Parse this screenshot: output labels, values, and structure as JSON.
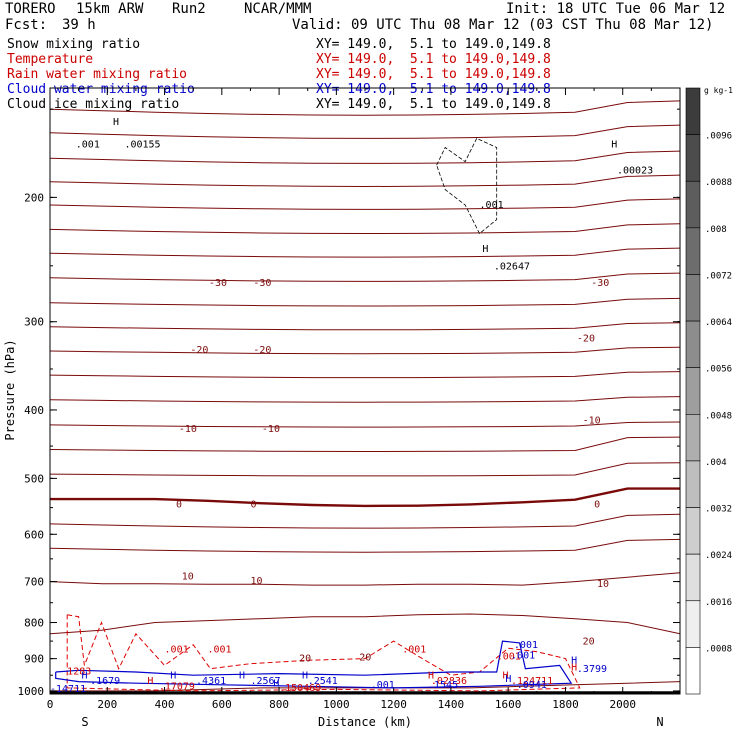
{
  "header": {
    "model": "TORERO",
    "grid": "15km ARW",
    "run": "Run2",
    "org": "NCAR/MMM",
    "init": "Init: 18 UTC Tue 06 Mar 12",
    "fcst_label": "Fcst:",
    "fcst_value": "39 h",
    "valid": "Valid: 09 UTC Thu 08 Mar 12 (03 CST Thu 08 Mar 12)"
  },
  "fields": [
    {
      "name": "Snow mixing ratio",
      "color": "#000000",
      "xy": "XY= 149.0,  5.1 to 149.0,149.8"
    },
    {
      "name": "Temperature",
      "color": "#cc0000",
      "xy": "XY= 149.0,  5.1 to 149.0,149.8"
    },
    {
      "name": "Rain water mixing ratio",
      "color": "#cc0000",
      "xy": "XY= 149.0,  5.1 to 149.0,149.8"
    },
    {
      "name": "Cloud water mixing ratio",
      "color": "#0000cc",
      "xy": "XY= 149.0,  5.1 to 149.0,149.8"
    },
    {
      "name": "Cloud ice mixing ratio",
      "color": "#000000",
      "xy": "XY= 149.0,  5.1 to 149.0,149.8"
    }
  ],
  "chart_data": {
    "type": "cross-section",
    "ylabel": "Pressure (hPa)",
    "xlabel": "Distance (km)",
    "x_ticks": [
      0,
      200,
      400,
      600,
      800,
      1000,
      1200,
      1400,
      1600,
      1800,
      2000
    ],
    "y_ticks": [
      200,
      300,
      400,
      500,
      600,
      700,
      800,
      900,
      1000
    ],
    "xlim": [
      0,
      2200
    ],
    "ylim": [
      1010,
      140
    ],
    "y_scale": "log-pressure",
    "left_end_label": "S",
    "right_end_label": "N",
    "colorbar": {
      "units": "g kg-1",
      "ticks": [
        ".0096",
        ".0088",
        ".008",
        ".0072",
        ".0064",
        ".0056",
        ".0048",
        ".004",
        ".0032",
        ".0024",
        ".0016",
        ".0008"
      ]
    },
    "temperature_labels": [
      {
        "text": "-30",
        "x": 555,
        "p": 267
      },
      {
        "text": "-30",
        "x": 710,
        "p": 267
      },
      {
        "text": "-30",
        "x": 1890,
        "p": 267
      },
      {
        "text": "-20",
        "x": 490,
        "p": 332
      },
      {
        "text": "-20",
        "x": 710,
        "p": 332
      },
      {
        "text": "-20",
        "x": 1840,
        "p": 320
      },
      {
        "text": "-10",
        "x": 450,
        "p": 430
      },
      {
        "text": "-10",
        "x": 740,
        "p": 430
      },
      {
        "text": "-10",
        "x": 1860,
        "p": 418
      },
      {
        "text": "0",
        "x": 440,
        "p": 550
      },
      {
        "text": "0",
        "x": 700,
        "p": 550
      },
      {
        "text": "0",
        "x": 1900,
        "p": 550
      },
      {
        "text": "10",
        "x": 460,
        "p": 695
      },
      {
        "text": "10",
        "x": 700,
        "p": 706
      },
      {
        "text": "10",
        "x": 1910,
        "p": 712
      },
      {
        "text": "20",
        "x": 870,
        "p": 908
      },
      {
        "text": "20",
        "x": 1080,
        "p": 905
      },
      {
        "text": "20",
        "x": 1860,
        "p": 860
      }
    ],
    "snow_labels": [
      {
        "text": "H",
        "x": 220,
        "p": 158
      },
      {
        "text": ".001",
        "x": 90,
        "p": 170
      },
      {
        "text": ".00155",
        "x": 260,
        "p": 170
      },
      {
        "text": ".001",
        "x": 1500,
        "p": 207
      },
      {
        "text": "H",
        "x": 1510,
        "p": 239
      },
      {
        "text": ".02647",
        "x": 1550,
        "p": 253
      },
      {
        "text": "H",
        "x": 1960,
        "p": 170
      },
      {
        "text": ".00023",
        "x": 1980,
        "p": 185
      }
    ],
    "rain_labels": [
      {
        "text": "1283",
        "x": 60,
        "p": 948
      },
      {
        "text": ".001",
        "x": 400,
        "p": 882
      },
      {
        "text": ".001",
        "x": 550,
        "p": 882
      },
      {
        "text": "H",
        "x": 340,
        "p": 978
      },
      {
        "text": ".17079",
        "x": 380,
        "p": 996
      },
      {
        "text": ".150469",
        "x": 800,
        "p": 1000
      },
      {
        "text": ".001",
        "x": 1230,
        "p": 882
      },
      {
        "text": ".001",
        "x": 1560,
        "p": 902
      },
      {
        "text": "H",
        "x": 1320,
        "p": 960
      },
      {
        "text": ".02836",
        "x": 1330,
        "p": 978
      },
      {
        "text": "H",
        "x": 1580,
        "p": 960
      },
      {
        "text": ".124711",
        "x": 1610,
        "p": 978
      },
      {
        "text": "H",
        "x": 1820,
        "p": 935
      }
    ],
    "cloud_water_labels": [
      {
        "text": ".001",
        "x": 1620,
        "p": 870
      },
      {
        "text": ".001",
        "x": 1610,
        "p": 900
      },
      {
        "text": "H",
        "x": 1820,
        "p": 915
      },
      {
        "text": ".3799",
        "x": 1840,
        "p": 940
      },
      {
        "text": "H",
        "x": 110,
        "p": 960
      },
      {
        "text": ".1679",
        "x": 140,
        "p": 978
      },
      {
        "text": "H",
        "x": 420,
        "p": 960
      },
      {
        "text": ".4361",
        "x": 510,
        "p": 978
      },
      {
        "text": "H",
        "x": 660,
        "p": 960
      },
      {
        "text": ".2567",
        "x": 700,
        "p": 978
      },
      {
        "text": "H",
        "x": 880,
        "p": 960
      },
      {
        "text": ".2541",
        "x": 900,
        "p": 978
      },
      {
        "text": ".001",
        "x": 1120,
        "p": 990
      },
      {
        "text": ".1545",
        "x": 1320,
        "p": 990
      },
      {
        "text": ".0941",
        "x": 1630,
        "p": 990
      },
      {
        "text": "H",
        "x": 1590,
        "p": 972
      },
      {
        "text": "H",
        "x": 780,
        "p": 985
      },
      {
        "text": "-14711",
        "x": 0,
        "p": 1004
      }
    ]
  }
}
